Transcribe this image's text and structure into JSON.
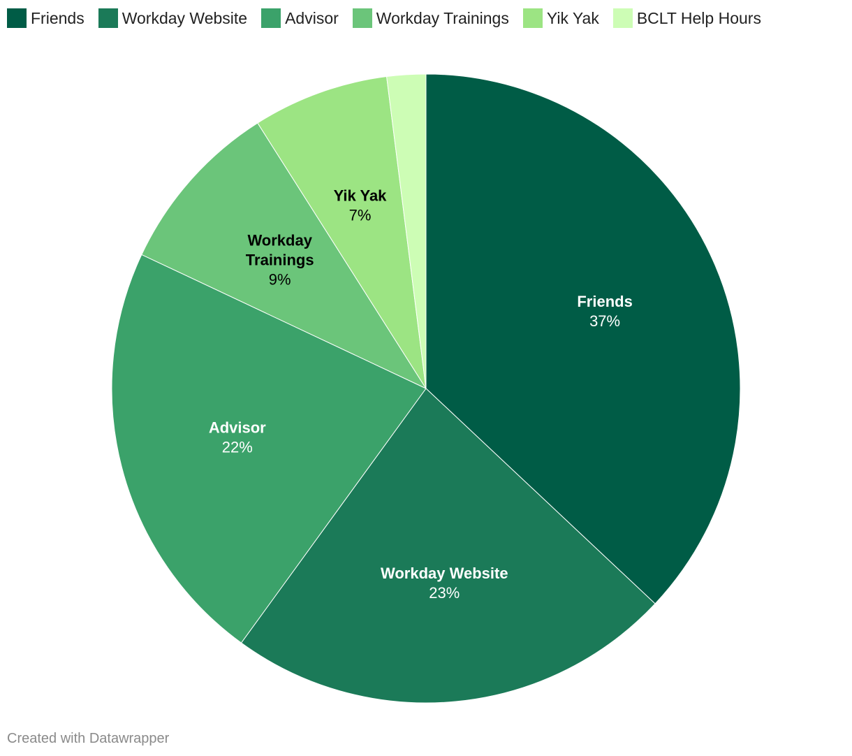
{
  "chart_data": {
    "type": "pie",
    "start_angle_deg": 0,
    "direction": "clockwise",
    "slices": [
      {
        "name": "Friends",
        "label_lines": [
          "Friends"
        ],
        "value": 37,
        "display": "37%",
        "color": "#005c46",
        "label_color": "#ffffff"
      },
      {
        "name": "Workday Website",
        "label_lines": [
          "Workday Website"
        ],
        "value": 23,
        "display": "23%",
        "color": "#1b7a58",
        "label_color": "#ffffff"
      },
      {
        "name": "Advisor",
        "label_lines": [
          "Advisor"
        ],
        "value": 22,
        "display": "22%",
        "color": "#3ba26a",
        "label_color": "#ffffff"
      },
      {
        "name": "Workday Trainings",
        "label_lines": [
          "Workday",
          "Trainings"
        ],
        "value": 9,
        "display": "9%",
        "color": "#6bc57a",
        "label_color": "#000000"
      },
      {
        "name": "Yik Yak",
        "label_lines": [
          "Yik Yak"
        ],
        "value": 7,
        "display": "7%",
        "color": "#9ce483",
        "label_color": "#000000"
      },
      {
        "name": "BCLT Help Hours",
        "label_lines": [],
        "value": 2,
        "display": "",
        "color": "#cdfdb5",
        "label_color": "#000000"
      }
    ]
  },
  "footer": {
    "credit": "Created with Datawrapper"
  }
}
